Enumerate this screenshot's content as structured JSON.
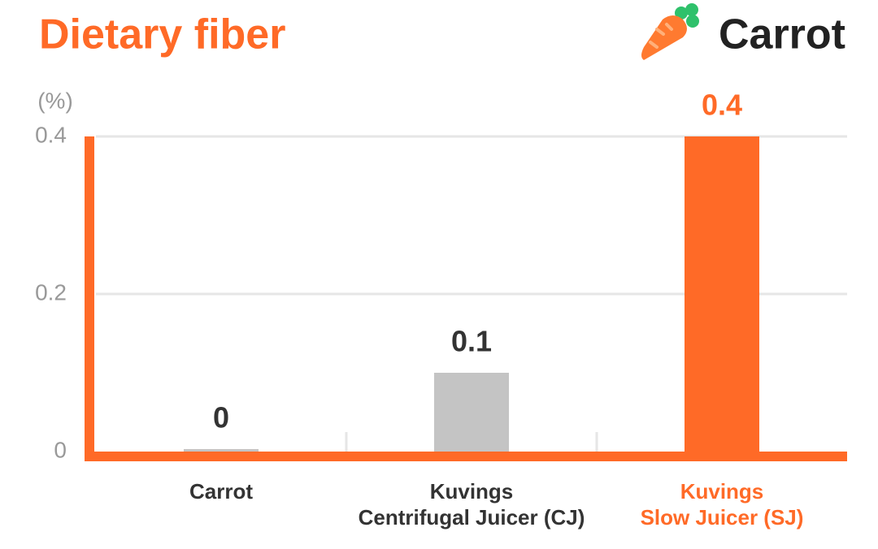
{
  "chart_data": {
    "type": "bar",
    "title": "Dietary fiber",
    "subject": "Carrot",
    "y_unit": "(%)",
    "categories": [
      "Carrot",
      "Kuvings\nCentrifugal Juicer (CJ)",
      "Kuvings\nSlow Juicer (SJ)"
    ],
    "values": [
      0,
      0.1,
      0.4
    ],
    "colors": [
      "#c4c4c4",
      "#c4c4c4",
      "#ff6a27"
    ],
    "label_colors": [
      "#333333",
      "#333333",
      "#ff6a27"
    ],
    "ylim": [
      0,
      0.4
    ],
    "yticks": [
      0,
      0.2,
      0.4
    ],
    "grid": true
  }
}
